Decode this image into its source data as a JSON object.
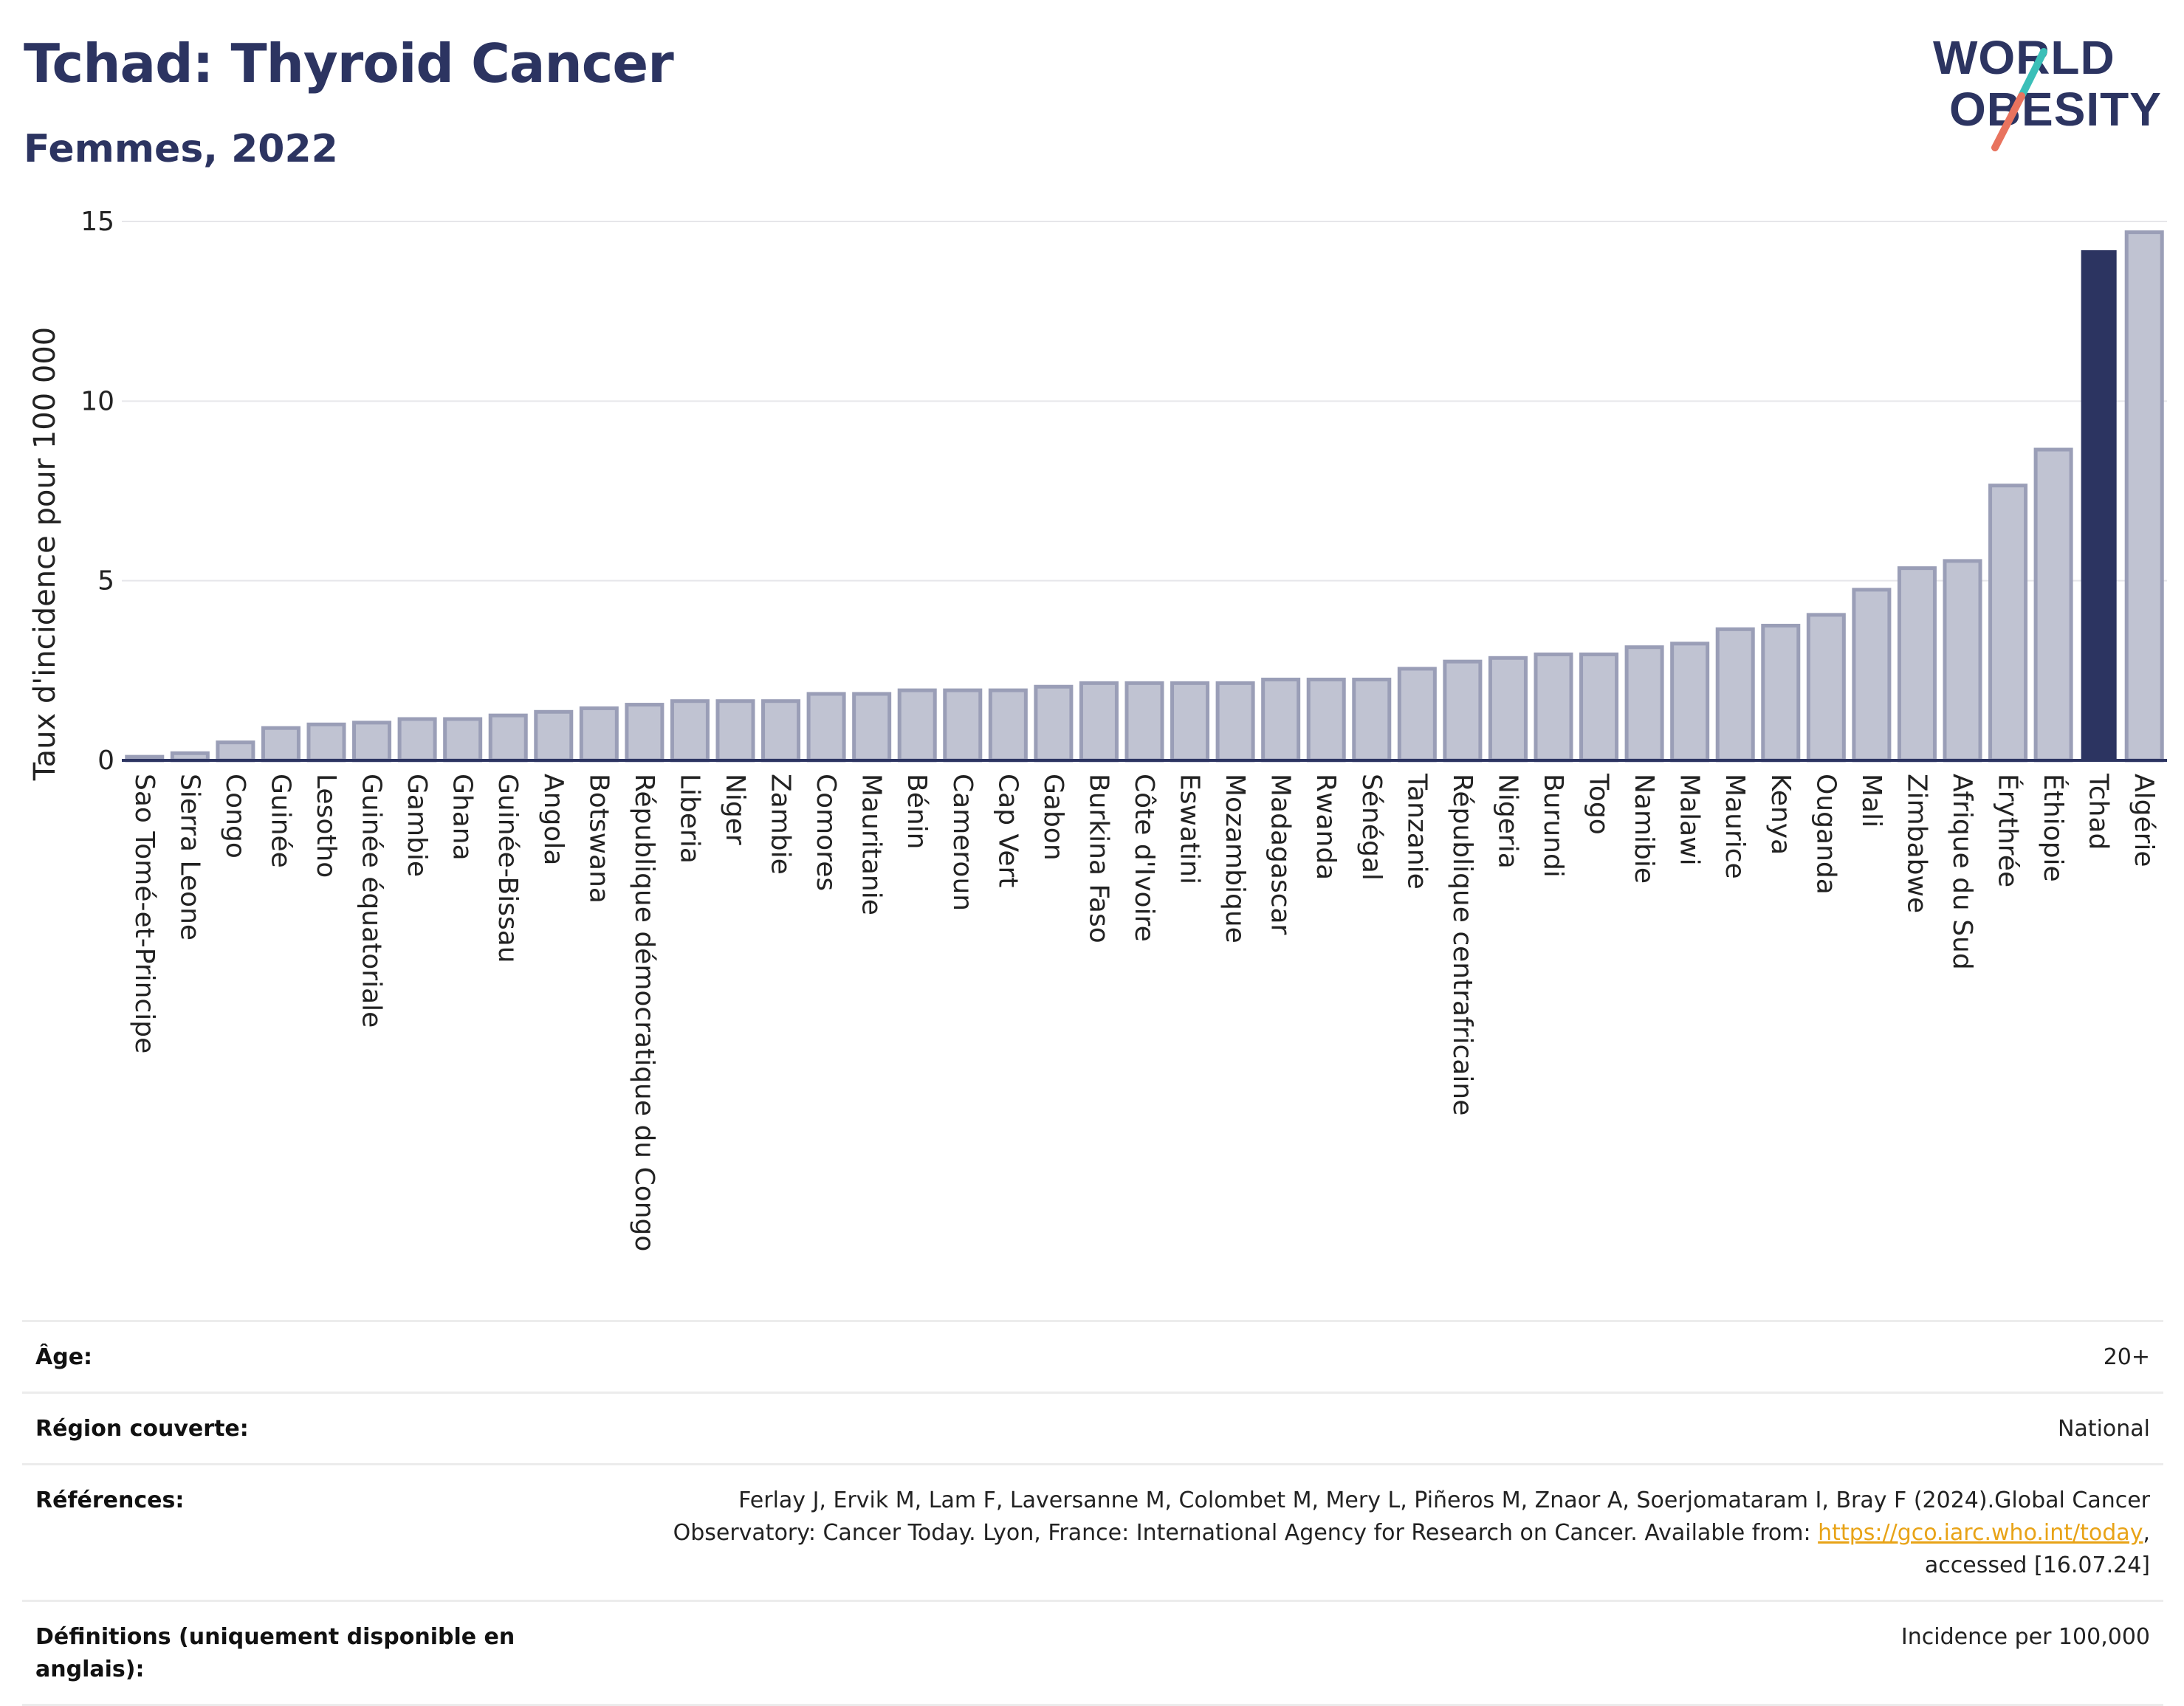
{
  "header": {
    "title": "Tchad: Thyroid Cancer",
    "subtitle": "Femmes, 2022"
  },
  "logo": {
    "line1": "WORLD",
    "line2": "OBESITY",
    "accent_colors": [
      "#3bbfb8",
      "#e8735e"
    ]
  },
  "chart_data": {
    "type": "bar",
    "ylabel": "Taux d'incidence pour 100 000",
    "xlabel": "",
    "ylim": [
      0,
      15
    ],
    "yticks": [
      0,
      5,
      10,
      15
    ],
    "grid": true,
    "highlight": "Tchad",
    "colors": {
      "bar": "#c0c3d2",
      "bar_border": "#9a9eb7",
      "highlight": "#2c3461"
    },
    "categories": [
      "Sao Tomé-et-Principe",
      "Sierra Leone",
      "Congo",
      "Guinée",
      "Lesotho",
      "Guinée équatoriale",
      "Gambie",
      "Ghana",
      "Guinée-Bissau",
      "Angola",
      "Botswana",
      "République démocratique du Congo",
      "Liberia",
      "Niger",
      "Zambie",
      "Comores",
      "Mauritanie",
      "Bénin",
      "Cameroun",
      "Cap Vert",
      "Gabon",
      "Burkina Faso",
      "Côte d'Ivoire",
      "Eswatini",
      "Mozambique",
      "Madagascar",
      "Rwanda",
      "Sénégal",
      "Tanzanie",
      "République centrafricaine",
      "Nigeria",
      "Burundi",
      "Togo",
      "Namibie",
      "Malawi",
      "Maurice",
      "Kenya",
      "Ouganda",
      "Mali",
      "Zimbabwe",
      "Afrique du Sud",
      "Érythrée",
      "Éthiopie",
      "Tchad",
      "Algérie"
    ],
    "values": [
      0.1,
      0.2,
      0.5,
      0.9,
      1.0,
      1.05,
      1.15,
      1.15,
      1.25,
      1.35,
      1.45,
      1.55,
      1.65,
      1.65,
      1.65,
      1.85,
      1.85,
      1.95,
      1.95,
      1.95,
      2.05,
      2.15,
      2.15,
      2.15,
      2.15,
      2.25,
      2.25,
      2.25,
      2.55,
      2.75,
      2.85,
      2.95,
      2.95,
      3.15,
      3.25,
      3.65,
      3.75,
      4.05,
      4.75,
      5.35,
      5.55,
      7.65,
      8.65,
      14.2,
      14.7
    ]
  },
  "info": {
    "age_label": "Âge:",
    "age_value": "20+",
    "region_label": "Région couverte:",
    "region_value": "National",
    "refs_label": "Références:",
    "refs_text_1": "Ferlay J, Ervik M, Lam F, Laversanne M, Colombet M, Mery L, Piñeros M, Znaor A, Soerjomataram I, Bray F (2024).Global Cancer",
    "refs_text_2": "Observatory: Cancer Today. Lyon, France: International Agency for Research on Cancer. Available from: ",
    "refs_link": "https://gco.iarc.who.int/today",
    "refs_text_3": ",",
    "refs_text_4": "accessed [16.07.24]",
    "defs_label": "Définitions (uniquement disponible en anglais):",
    "defs_value": "Incidence per 100,000"
  }
}
